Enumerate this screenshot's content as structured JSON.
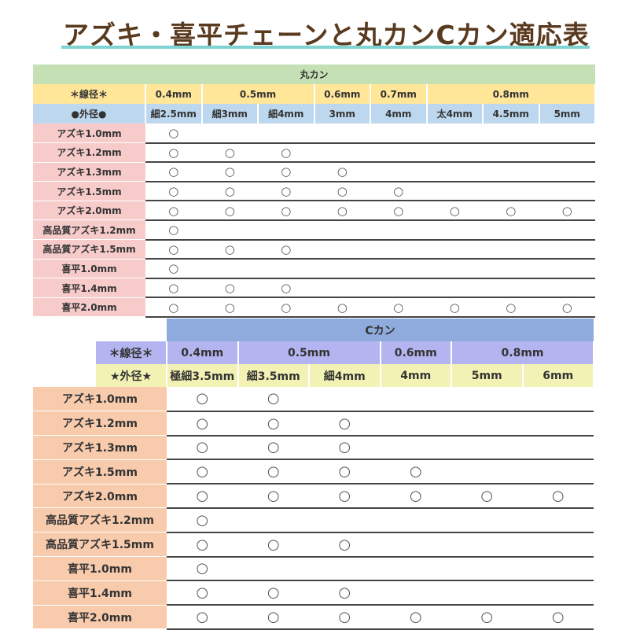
{
  "title": "アズキ・喜平チェーンと丸カンCカン適応表",
  "colors": {
    "title": "#5a3a1e",
    "underline": "#7fd3d3",
    "t1_top": "#c5e0b4",
    "t1_wire": "#ffe699",
    "t1_outer": "#bdd7ee",
    "t1_label": "#f8cbcb",
    "t2_top": "#8faadc",
    "t2_wire": "#b4b4f0",
    "t2_outer": "#f2f2b4",
    "t2_label": "#f8cbad"
  },
  "maru": {
    "title": "丸カン",
    "wire_label": "＊線径＊",
    "wire": [
      {
        "label": "0.4mm",
        "span": 1
      },
      {
        "label": "0.5mm",
        "span": 2
      },
      {
        "label": "0.6mm",
        "span": 1
      },
      {
        "label": "0.7mm",
        "span": 1
      },
      {
        "label": "0.8mm",
        "span": 3
      }
    ],
    "outer_label": "●外径●",
    "outer": [
      "細2.5mm",
      "細3mm",
      "細4mm",
      "3mm",
      "4mm",
      "太4mm",
      "4.5mm",
      "5mm"
    ],
    "rows": [
      {
        "label": "アズキ1.0mm",
        "marks": [
          "○",
          "",
          "",
          "",
          "",
          "",
          "",
          ""
        ]
      },
      {
        "label": "アズキ1.2mm",
        "marks": [
          "○",
          "○",
          "○",
          "",
          "",
          "",
          "",
          ""
        ]
      },
      {
        "label": "アズキ1.3mm",
        "marks": [
          "○",
          "○",
          "○",
          "○",
          "",
          "",
          "",
          ""
        ]
      },
      {
        "label": "アズキ1.5mm",
        "marks": [
          "○",
          "○",
          "○",
          "○",
          "○",
          "",
          "",
          ""
        ]
      },
      {
        "label": "アズキ2.0mm",
        "marks": [
          "○",
          "○",
          "○",
          "○",
          "○",
          "○",
          "○",
          "○"
        ]
      },
      {
        "label": "高品質アズキ1.2mm",
        "marks": [
          "○",
          "",
          "",
          "",
          "",
          "",
          "",
          ""
        ]
      },
      {
        "label": "高品質アズキ1.5mm",
        "marks": [
          "○",
          "○",
          "○",
          "",
          "",
          "",
          "",
          ""
        ]
      },
      {
        "label": "喜平1.0mm",
        "marks": [
          "○",
          "",
          "",
          "",
          "",
          "",
          "",
          ""
        ]
      },
      {
        "label": "喜平1.4mm",
        "marks": [
          "○",
          "○",
          "○",
          "",
          "",
          "",
          "",
          ""
        ]
      },
      {
        "label": "喜平2.0mm",
        "marks": [
          "○",
          "○",
          "○",
          "○",
          "○",
          "○",
          "○",
          "○"
        ]
      }
    ]
  },
  "ckan": {
    "title": "Cカン",
    "wire_label": "＊線径＊",
    "wire": [
      {
        "label": "0.4mm",
        "span": 1
      },
      {
        "label": "0.5mm",
        "span": 2
      },
      {
        "label": "0.6mm",
        "span": 1
      },
      {
        "label": "0.8mm",
        "span": 2
      }
    ],
    "outer_label": "★外径★",
    "outer": [
      "極細3.5mm",
      "細3.5mm",
      "細4mm",
      "4mm",
      "5mm",
      "6mm"
    ],
    "rows": [
      {
        "label": "アズキ1.0mm",
        "marks": [
          "○",
          "○",
          "",
          "",
          "",
          ""
        ]
      },
      {
        "label": "アズキ1.2mm",
        "marks": [
          "○",
          "○",
          "○",
          "",
          "",
          ""
        ]
      },
      {
        "label": "アズキ1.3mm",
        "marks": [
          "○",
          "○",
          "○",
          "",
          "",
          ""
        ]
      },
      {
        "label": "アズキ1.5mm",
        "marks": [
          "○",
          "○",
          "○",
          "○",
          "",
          ""
        ]
      },
      {
        "label": "アズキ2.0mm",
        "marks": [
          "○",
          "○",
          "○",
          "○",
          "○",
          "○"
        ]
      },
      {
        "label": "高品質アズキ1.2mm",
        "marks": [
          "○",
          "",
          "",
          "",
          "",
          ""
        ]
      },
      {
        "label": "高品質アズキ1.5mm",
        "marks": [
          "○",
          "○",
          "○",
          "",
          "",
          ""
        ]
      },
      {
        "label": "喜平1.0mm",
        "marks": [
          "○",
          "",
          "",
          "",
          "",
          ""
        ]
      },
      {
        "label": "喜平1.4mm",
        "marks": [
          "○",
          "○",
          "○",
          "",
          "",
          ""
        ]
      },
      {
        "label": "喜平2.0mm",
        "marks": [
          "○",
          "○",
          "○",
          "○",
          "○",
          "○"
        ]
      }
    ]
  }
}
